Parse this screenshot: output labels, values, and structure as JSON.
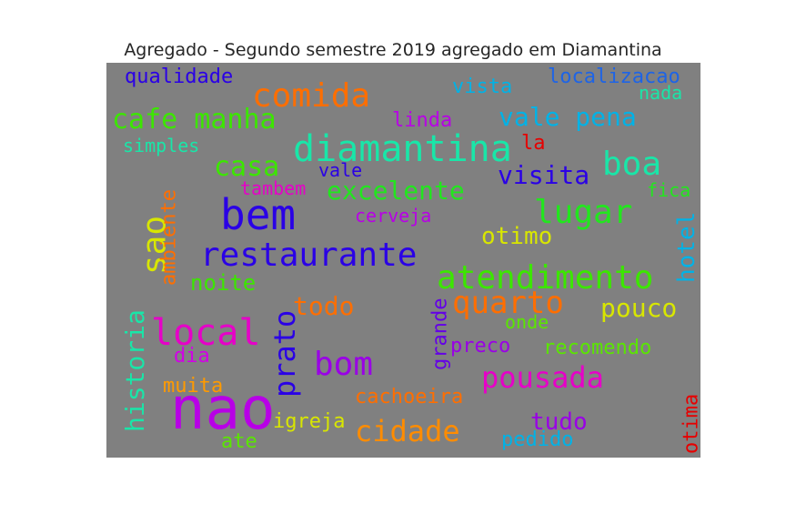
{
  "chart_data": {
    "type": "wordcloud",
    "title": "Agregado - Segundo semestre 2019 agregado em Diamantina",
    "background": "#808080",
    "words": [
      {
        "text": "nao",
        "color": "#b800e6",
        "vertical": false
      },
      {
        "text": "bem",
        "color": "#2a00e6",
        "vertical": false
      },
      {
        "text": "diamantina",
        "color": "#19e6a8",
        "vertical": false
      },
      {
        "text": "restaurante",
        "color": "#2a00e6",
        "vertical": false
      },
      {
        "text": "atendimento",
        "color": "#3ce600",
        "vertical": false
      },
      {
        "text": "local",
        "color": "#e600c8",
        "vertical": false
      },
      {
        "text": "sao",
        "color": "#d8e600",
        "vertical": true
      },
      {
        "text": "comida",
        "color": "#ff6e00",
        "vertical": false
      },
      {
        "text": "lugar",
        "color": "#22e61e",
        "vertical": false
      },
      {
        "text": "quarto",
        "color": "#ff6e00",
        "vertical": false
      },
      {
        "text": "boa",
        "color": "#19e6a8",
        "vertical": false
      },
      {
        "text": "pousada",
        "color": "#e600c8",
        "vertical": false
      },
      {
        "text": "cafe manha",
        "color": "#3ce600",
        "vertical": false
      },
      {
        "text": "vale pena",
        "color": "#00b2e6",
        "vertical": false
      },
      {
        "text": "bom",
        "color": "#9a00e6",
        "vertical": false
      },
      {
        "text": "prato",
        "color": "#2a00e6",
        "vertical": true
      },
      {
        "text": "historia",
        "color": "#19e6a8",
        "vertical": true
      },
      {
        "text": "cidade",
        "color": "#ff8c00",
        "vertical": false
      },
      {
        "text": "casa",
        "color": "#3ce600",
        "vertical": false
      },
      {
        "text": "visita",
        "color": "#2a00e6",
        "vertical": false
      },
      {
        "text": "excelente",
        "color": "#22e61e",
        "vertical": false
      },
      {
        "text": "pouco",
        "color": "#d8e600",
        "vertical": false
      },
      {
        "text": "otimo",
        "color": "#d8e600",
        "vertical": false
      },
      {
        "text": "hotel",
        "color": "#00b2e6",
        "vertical": true
      },
      {
        "text": "todo",
        "color": "#ff6e00",
        "vertical": false
      },
      {
        "text": "tudo",
        "color": "#9a00e6",
        "vertical": false
      },
      {
        "text": "noite",
        "color": "#3ce600",
        "vertical": false
      },
      {
        "text": "ambiente",
        "color": "#ff6e00",
        "vertical": true
      },
      {
        "text": "localizacao",
        "color": "#1e64e6",
        "vertical": false
      },
      {
        "text": "vista",
        "color": "#00b2e6",
        "vertical": false
      },
      {
        "text": "qualidade",
        "color": "#2a00e6",
        "vertical": false
      },
      {
        "text": "linda",
        "color": "#b800e6",
        "vertical": false
      },
      {
        "text": "la",
        "color": "#e60000",
        "vertical": false
      },
      {
        "text": "vale",
        "color": "#2a00e6",
        "vertical": false
      },
      {
        "text": "tambem",
        "color": "#e600c8",
        "vertical": false
      },
      {
        "text": "cerveja",
        "color": "#b800e6",
        "vertical": false
      },
      {
        "text": "simples",
        "color": "#19e6a8",
        "vertical": false
      },
      {
        "text": "nada",
        "color": "#19e6a8",
        "vertical": false
      },
      {
        "text": "fica",
        "color": "#22e61e",
        "vertical": false
      },
      {
        "text": "onde",
        "color": "#5ae600",
        "vertical": false
      },
      {
        "text": "grande",
        "color": "#6400e6",
        "vertical": true
      },
      {
        "text": "preco",
        "color": "#9a00e6",
        "vertical": false
      },
      {
        "text": "recomendo",
        "color": "#5ae600",
        "vertical": false
      },
      {
        "text": "dia",
        "color": "#d200e6",
        "vertical": false
      },
      {
        "text": "muita",
        "color": "#ff9a00",
        "vertical": false
      },
      {
        "text": "cachoeira",
        "color": "#ff6e00",
        "vertical": false
      },
      {
        "text": "igreja",
        "color": "#d8e600",
        "vertical": false
      },
      {
        "text": "ate",
        "color": "#5ae600",
        "vertical": false
      },
      {
        "text": "pedido",
        "color": "#00b2e6",
        "vertical": false
      },
      {
        "text": "otima",
        "color": "#e60000",
        "vertical": true
      }
    ]
  }
}
